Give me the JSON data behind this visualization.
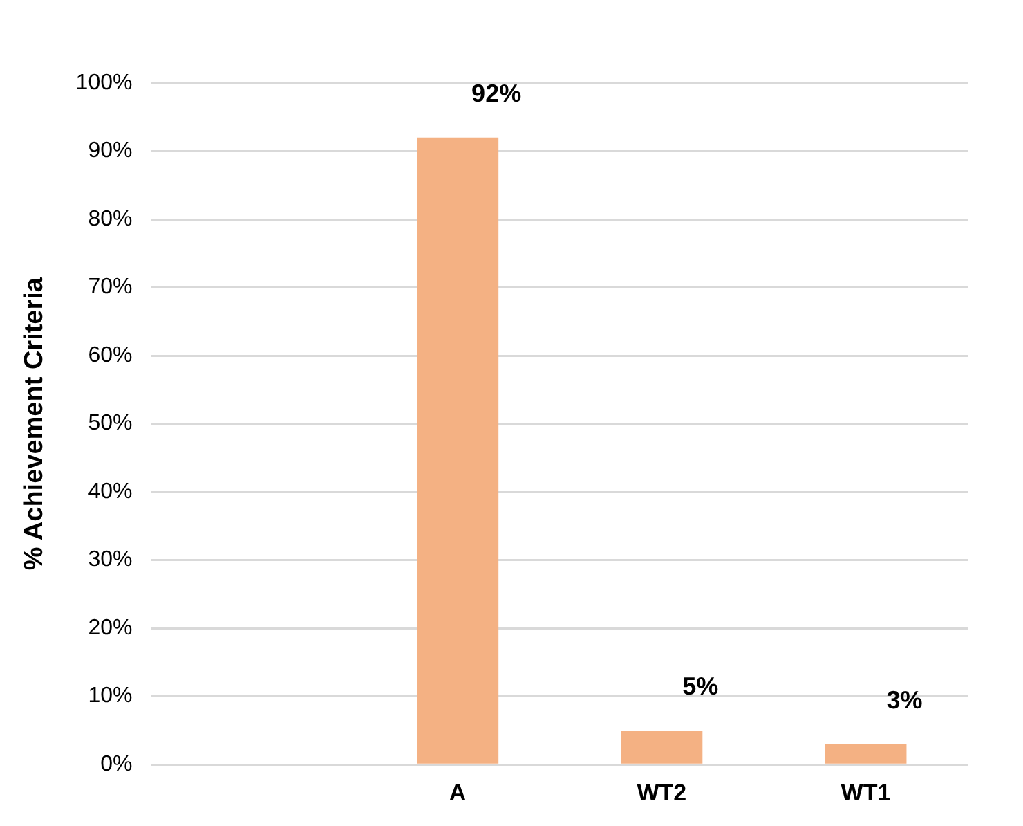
{
  "chart_data": {
    "type": "bar",
    "ylabel": "% Achievement Criteria",
    "categories": [
      null,
      "A",
      "WT2",
      "WT1"
    ],
    "values": [
      null,
      92,
      5,
      3
    ],
    "value_labels": [
      null,
      "92%",
      "5%",
      "3%"
    ],
    "color": "#f4b183",
    "ylim": [
      0,
      100
    ],
    "yticks": [
      {
        "value": 0,
        "label": "0%"
      },
      {
        "value": 10,
        "label": "10%"
      },
      {
        "value": 20,
        "label": "20%"
      },
      {
        "value": 30,
        "label": "30%"
      },
      {
        "value": 40,
        "label": "40%"
      },
      {
        "value": 50,
        "label": "50%"
      },
      {
        "value": 60,
        "label": "60%"
      },
      {
        "value": 70,
        "label": "70%"
      },
      {
        "value": 80,
        "label": "80%"
      },
      {
        "value": 90,
        "label": "90%"
      },
      {
        "value": 100,
        "label": "100%"
      }
    ],
    "grid": "y",
    "legend": false
  }
}
